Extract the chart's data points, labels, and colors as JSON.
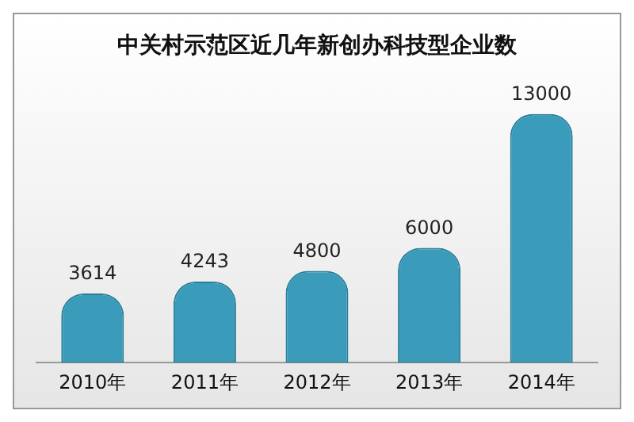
{
  "chart_data": {
    "type": "bar",
    "title": "中关村示范区近几年新创办科技型企业数",
    "categories": [
      "2010年",
      "2011年",
      "2012年",
      "2013年",
      "2014年"
    ],
    "values": [
      3614,
      4243,
      4800,
      6000,
      13000
    ],
    "color": "#3a9cba",
    "data_labels": true,
    "grid": false,
    "legend": false
  }
}
